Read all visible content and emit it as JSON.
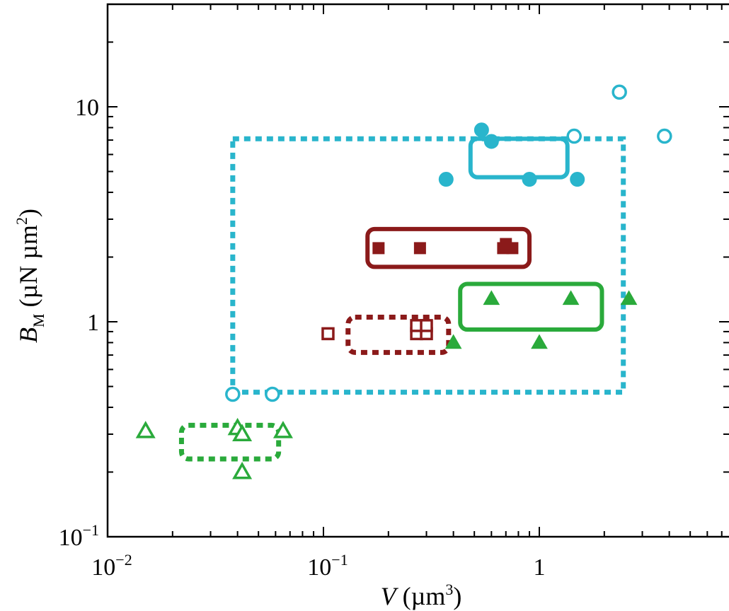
{
  "chart_data": {
    "type": "scatter",
    "title": "",
    "xscale": "log",
    "yscale": "log",
    "xlim": [
      0.01,
      9
    ],
    "ylim": [
      0.1,
      30
    ],
    "grid": false,
    "legend": "none",
    "xlabel": {
      "main": "V",
      "unit_open": " (µm",
      "unit_sup": "3",
      "unit_close": ")"
    },
    "ylabel": {
      "main": "B",
      "sub": "M",
      "unit_open": " (µN µm",
      "unit_sup": "2",
      "unit_close": ")"
    },
    "xticks": [
      {
        "value": 0.01,
        "base": "10",
        "exp": "−2"
      },
      {
        "value": 0.1,
        "base": "10",
        "exp": "−1"
      },
      {
        "value": 1,
        "base": "1",
        "exp": ""
      }
    ],
    "yticks": [
      {
        "value": 0.1,
        "base": "10",
        "exp": "−1"
      },
      {
        "value": 1,
        "base": "1",
        "exp": ""
      },
      {
        "value": 10,
        "base": "10",
        "exp": ""
      }
    ],
    "series": [
      {
        "color": "#29b5cc",
        "marker": "circle-open",
        "points": [
          [
            0.038,
            0.46
          ],
          [
            0.058,
            0.46
          ],
          [
            1.45,
            7.3
          ],
          [
            2.35,
            11.7
          ],
          [
            3.8,
            7.3
          ]
        ]
      },
      {
        "color": "#29b5cc",
        "marker": "circle-filled",
        "points": [
          [
            0.54,
            7.8
          ],
          [
            0.6,
            6.9
          ],
          [
            0.37,
            4.6
          ],
          [
            0.9,
            4.6
          ],
          [
            1.5,
            4.6
          ]
        ]
      },
      {
        "color": "#8b1a1a",
        "marker": "square-filled",
        "points": [
          [
            0.18,
            2.2
          ],
          [
            0.28,
            2.2
          ],
          [
            0.68,
            2.2
          ],
          [
            0.75,
            2.2
          ],
          [
            0.7,
            2.3
          ]
        ]
      },
      {
        "color": "#8b1a1a",
        "marker": "square-open",
        "points": [
          [
            0.105,
            0.88
          ],
          [
            0.27,
            0.88
          ],
          [
            0.3,
            0.88
          ],
          [
            0.27,
            0.96
          ],
          [
            0.3,
            0.96
          ]
        ]
      },
      {
        "color": "#2aaa3b",
        "marker": "triangle-filled",
        "points": [
          [
            0.4,
            0.8
          ],
          [
            0.6,
            1.28
          ],
          [
            1.0,
            0.8
          ],
          [
            1.4,
            1.28
          ],
          [
            2.6,
            1.28
          ]
        ]
      },
      {
        "color": "#2aaa3b",
        "marker": "triangle-open",
        "points": [
          [
            0.015,
            0.31
          ],
          [
            0.04,
            0.32
          ],
          [
            0.042,
            0.3
          ],
          [
            0.065,
            0.31
          ],
          [
            0.042,
            0.2
          ]
        ]
      }
    ],
    "regions": [
      {
        "color": "#29b5cc",
        "style": "dashed",
        "rounded": false,
        "x": [
          0.038,
          2.45
        ],
        "y": [
          0.47,
          7.1
        ]
      },
      {
        "color": "#29b5cc",
        "style": "solid",
        "rounded": true,
        "x": [
          0.48,
          1.35
        ],
        "y": [
          4.7,
          7.1
        ]
      },
      {
        "color": "#8b1a1a",
        "style": "solid",
        "rounded": true,
        "x": [
          0.16,
          0.9
        ],
        "y": [
          1.8,
          2.7
        ]
      },
      {
        "color": "#8b1a1a",
        "style": "dashed",
        "rounded": true,
        "x": [
          0.13,
          0.38
        ],
        "y": [
          0.72,
          1.05
        ]
      },
      {
        "color": "#2aaa3b",
        "style": "solid",
        "rounded": true,
        "x": [
          0.43,
          1.95
        ],
        "y": [
          0.92,
          1.5
        ]
      },
      {
        "color": "#2aaa3b",
        "style": "dashed",
        "rounded": true,
        "x": [
          0.022,
          0.062
        ],
        "y": [
          0.23,
          0.33
        ]
      }
    ]
  }
}
